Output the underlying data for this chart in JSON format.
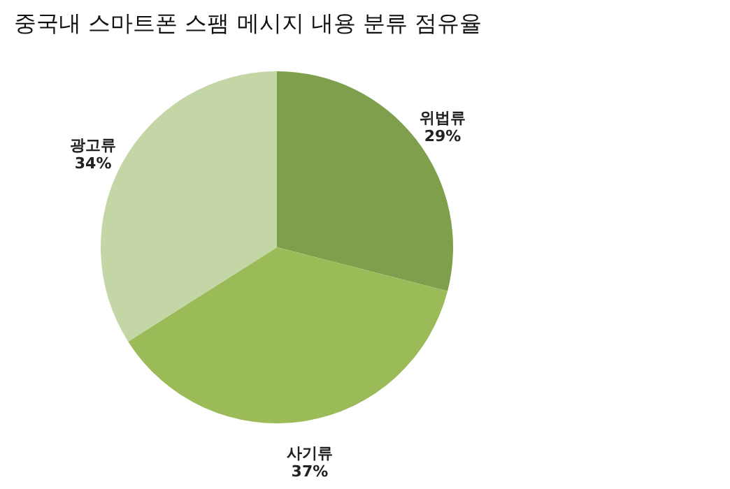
{
  "chart_data": {
    "type": "pie",
    "title": "중국내 스마트폰 스팸 메시지 내용 분류 점유율",
    "categories": [
      "위법류",
      "사기류",
      "광고류"
    ],
    "values": [
      29,
      37,
      34
    ],
    "value_labels": [
      "29%",
      "37%",
      "34%"
    ],
    "colors": [
      "#7f9f4c",
      "#9bbb59",
      "#c4d6a5"
    ]
  }
}
